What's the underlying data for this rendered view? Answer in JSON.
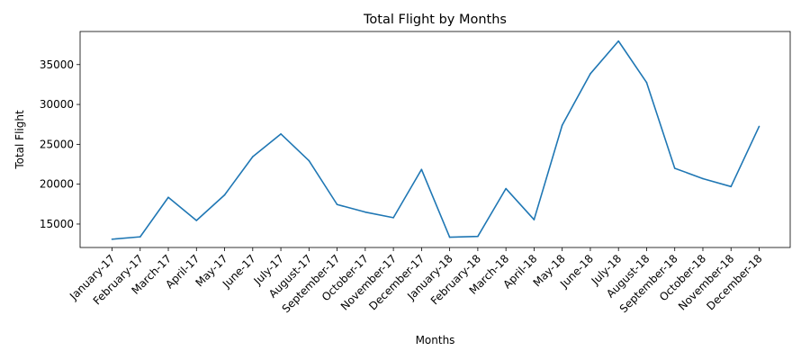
{
  "chart_data": {
    "type": "line",
    "title": "Total Flight by Months",
    "xlabel": "Months",
    "ylabel": "Total Flight",
    "categories": [
      "January-17",
      "February-17",
      "March-17",
      "April-17",
      "May-17",
      "June-17",
      "July-17",
      "August-17",
      "September-17",
      "October-17",
      "November-17",
      "December-17",
      "January-18",
      "February-18",
      "March-18",
      "April-18",
      "May-18",
      "June-18",
      "July-18",
      "August-18",
      "September-18",
      "October-18",
      "November-18",
      "December-18"
    ],
    "series": [
      {
        "values": [
          13100,
          13400,
          18350,
          15450,
          18650,
          23450,
          26300,
          22950,
          17450,
          16500,
          15800,
          21850,
          13350,
          13450,
          19450,
          15550,
          27400,
          33850,
          37950,
          32750,
          22000,
          20700,
          19700,
          27250
        ],
        "color": "#1f77b4"
      }
    ],
    "yticks": [
      15000,
      20000,
      25000,
      30000,
      35000
    ],
    "ylim": [
      12060,
      39150
    ],
    "grid": false,
    "legend": "none"
  }
}
